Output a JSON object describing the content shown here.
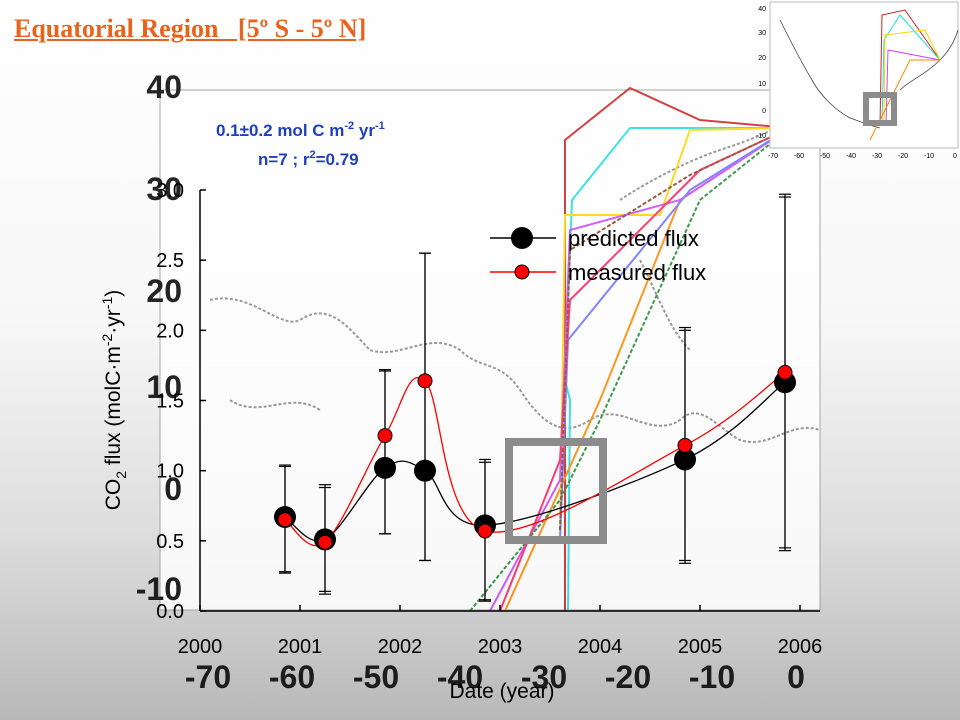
{
  "title": "Equatorial Region   [5º S - 5º N]",
  "stats": {
    "line1_prefix": "0.1±0.2 mol C m",
    "line1_exp1": "-2",
    "line1_mid": " yr",
    "line1_exp2": "-1",
    "line2_prefix": "n=7  ;  r",
    "line2_exp": "2",
    "line2_suffix": "=0.79"
  },
  "colors": {
    "title": "#e8641e",
    "stats": "#1f3fbf",
    "predicted": "#000000",
    "measured": "#ff0000",
    "highlight_box": "#8c8c8c"
  },
  "background_map": {
    "y_ticks": [
      "40",
      "30",
      "20",
      "10",
      "0",
      "-10"
    ],
    "x_ticks": [
      "-70",
      "-60",
      "-50",
      "-40",
      "-30",
      "-20",
      "-10",
      "0"
    ]
  },
  "inset_map": {
    "y_ticks": [
      "40",
      "30",
      "20",
      "10",
      "0",
      "-10"
    ],
    "x_ticks": [
      "-70",
      "-60",
      "-50",
      "-40",
      "-30",
      "-20",
      "-10",
      "0"
    ]
  },
  "chart_data": {
    "type": "scatter",
    "title": "",
    "xlabel": "Date (year)",
    "ylabel": "CO2 flux (molC·m-2·yr-1)",
    "ylabel_parts": {
      "a": "CO",
      "b": "2",
      "c": " flux (molC·m",
      "d": "-2",
      "e": "·yr",
      "f": "-1",
      "g": ")"
    },
    "xlim": [
      2000,
      2006
    ],
    "ylim": [
      0.0,
      3.0
    ],
    "x_ticks": [
      "2000",
      "2001",
      "2002",
      "2003",
      "2004",
      "2005",
      "2006"
    ],
    "y_ticks": [
      "0.0",
      "0.5",
      "1.0",
      "1.5",
      "2.0",
      "2.5",
      "3.0"
    ],
    "legend_position": "top-right",
    "series": [
      {
        "name": "predicted flux",
        "color": "#000000",
        "marker": "large-circle",
        "x": [
          2000.85,
          2001.25,
          2001.85,
          2002.25,
          2002.85,
          2004.85,
          2005.85
        ],
        "y": [
          0.67,
          0.51,
          1.02,
          1.0,
          0.61,
          1.08,
          1.63
        ],
        "error_low": [
          0.28,
          0.14,
          0.55,
          0.36,
          0.08,
          0.36,
          0.45
        ],
        "error_high": [
          1.04,
          0.9,
          1.72,
          2.55,
          1.08,
          2.02,
          2.97
        ]
      },
      {
        "name": "measured flux",
        "color": "#ff0000",
        "marker": "small-circle",
        "x": [
          2000.85,
          2001.25,
          2001.85,
          2002.25,
          2002.85,
          2004.85,
          2005.85
        ],
        "y": [
          0.65,
          0.49,
          1.25,
          1.64,
          0.57,
          1.18,
          1.7
        ],
        "error_low": [
          0.27,
          0.12,
          0.55,
          0.36,
          0.07,
          0.34,
          0.43
        ],
        "error_high": [
          1.03,
          0.88,
          1.71,
          2.55,
          1.06,
          2.0,
          2.95
        ]
      }
    ]
  }
}
